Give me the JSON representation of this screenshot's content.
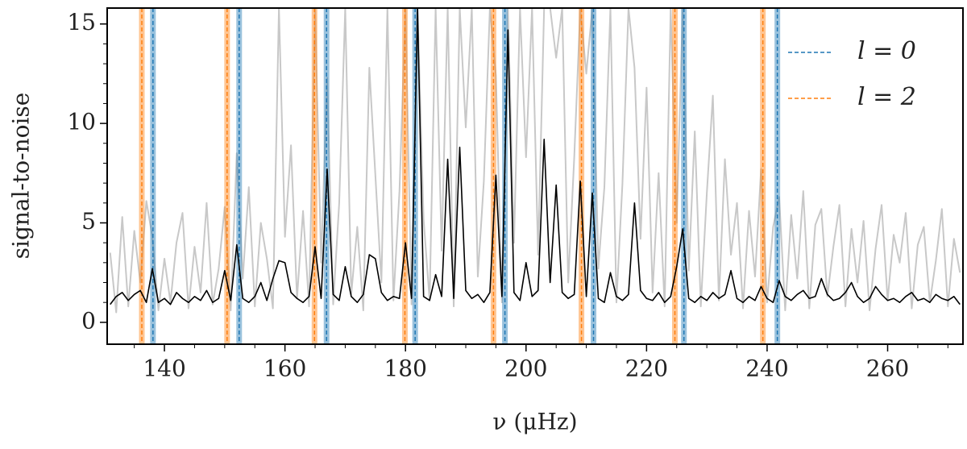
{
  "chart_data": {
    "type": "line",
    "xlabel": "ν (μHz)",
    "ylabel": "signal-to-noise",
    "xlim": [
      130.5,
      272.5
    ],
    "ylim": [
      -1.1,
      15.8
    ],
    "xticks": [
      140,
      160,
      180,
      200,
      220,
      240,
      260
    ],
    "xminorticks": [
      135,
      145,
      150,
      155,
      165,
      170,
      175,
      185,
      190,
      195,
      205,
      210,
      215,
      225,
      230,
      235,
      245,
      250,
      255,
      265,
      270
    ],
    "yticks": [
      0,
      5,
      10,
      15
    ],
    "yminorticks": [
      1,
      2,
      3,
      4,
      6,
      7,
      8,
      9,
      11,
      12,
      13,
      14
    ],
    "legend": "upper right",
    "x": [
      131,
      132,
      133,
      134,
      135,
      136,
      137,
      138,
      139,
      140,
      141,
      142,
      143,
      144,
      145,
      146,
      147,
      148,
      149,
      150,
      151,
      152,
      153,
      154,
      155,
      156,
      157,
      158,
      159,
      160,
      161,
      162,
      163,
      164,
      165,
      166,
      167,
      168,
      169,
      170,
      171,
      172,
      173,
      174,
      175,
      176,
      177,
      178,
      179,
      180,
      181,
      182,
      183,
      184,
      185,
      186,
      187,
      188,
      189,
      190,
      191,
      192,
      193,
      194,
      195,
      196,
      197,
      198,
      199,
      200,
      201,
      202,
      203,
      204,
      205,
      206,
      207,
      208,
      209,
      210,
      211,
      212,
      213,
      214,
      215,
      216,
      217,
      218,
      219,
      220,
      221,
      222,
      223,
      224,
      225,
      226,
      227,
      228,
      229,
      230,
      231,
      232,
      233,
      234,
      235,
      236,
      237,
      238,
      239,
      240,
      241,
      242,
      243,
      244,
      245,
      246,
      247,
      248,
      249,
      250,
      251,
      252,
      253,
      254,
      255,
      256,
      257,
      258,
      259,
      260,
      261,
      262,
      263,
      264,
      265,
      266,
      267,
      268,
      269,
      270,
      271,
      272
    ],
    "series": [
      {
        "color": "#c8c8c8",
        "values": [
          3.5,
          0.5,
          5.3,
          0.8,
          4.6,
          2.0,
          6.1,
          4.3,
          0.6,
          3.2,
          1.0,
          4.0,
          5.5,
          0.7,
          3.8,
          1.5,
          6.0,
          0.9,
          2.7,
          5.8,
          0.6,
          8.5,
          2.2,
          6.8,
          0.8,
          5.0,
          3.2,
          0.7,
          15.8,
          4.3,
          8.9,
          1.2,
          5.6,
          0.8,
          15.8,
          3.0,
          12.3,
          0.9,
          6.0,
          15.8,
          1.4,
          4.8,
          0.6,
          12.8,
          7.4,
          2.0,
          15.8,
          1.1,
          6.6,
          15.8,
          0.9,
          15.8,
          5.2,
          1.1,
          15.8,
          3.6,
          15.8,
          0.8,
          15.8,
          9.8,
          15.8,
          2.3,
          7.1,
          15.8,
          12.4,
          1.0,
          15.8,
          4.0,
          15.8,
          8.3,
          15.8,
          3.4,
          15.8,
          15.8,
          13.3,
          15.8,
          2.0,
          8.3,
          15.8,
          12.5,
          15.8,
          2.7,
          6.8,
          15.8,
          1.0,
          7.0,
          15.8,
          12.8,
          4.2,
          11.8,
          1.5,
          7.5,
          0.8,
          15.8,
          5.0,
          15.8,
          2.6,
          9.6,
          0.8,
          6.5,
          11.4,
          1.1,
          8.2,
          3.4,
          6.0,
          0.7,
          5.6,
          2.3,
          7.7,
          1.0,
          4.8,
          6.3,
          0.6,
          5.4,
          2.2,
          6.6,
          0.7,
          4.9,
          5.7,
          1.3,
          3.8,
          5.9,
          0.8,
          4.7,
          2.0,
          5.1,
          0.6,
          3.7,
          5.9,
          1.1,
          4.4,
          3.0,
          5.5,
          0.7,
          3.9,
          4.8,
          1.0,
          3.1,
          5.7,
          0.8,
          4.2,
          2.5
        ]
      },
      {
        "color": "#000000",
        "values": [
          0.9,
          1.3,
          1.5,
          1.1,
          1.4,
          1.6,
          1.0,
          2.7,
          1.0,
          1.2,
          0.9,
          1.5,
          1.2,
          1.0,
          1.3,
          1.1,
          1.6,
          1.0,
          1.2,
          2.6,
          1.1,
          3.9,
          1.2,
          1.0,
          1.3,
          2.0,
          1.1,
          2.2,
          3.1,
          3.0,
          1.5,
          1.2,
          1.0,
          1.3,
          3.8,
          1.2,
          7.7,
          1.4,
          1.1,
          2.8,
          1.3,
          1.0,
          1.4,
          3.4,
          3.2,
          1.5,
          1.1,
          1.3,
          1.2,
          4.0,
          1.2,
          15.8,
          1.3,
          1.1,
          2.4,
          1.3,
          8.2,
          1.2,
          8.8,
          1.6,
          1.2,
          1.4,
          1.0,
          1.5,
          7.4,
          1.3,
          14.7,
          1.5,
          1.1,
          3.0,
          1.3,
          1.6,
          9.2,
          2.0,
          6.9,
          1.5,
          1.2,
          1.4,
          7.1,
          1.3,
          6.5,
          1.2,
          1.0,
          2.5,
          1.3,
          1.1,
          1.4,
          6.0,
          1.6,
          1.2,
          1.1,
          1.5,
          1.0,
          1.3,
          2.8,
          4.7,
          1.2,
          1.0,
          1.3,
          1.1,
          1.5,
          1.2,
          1.4,
          2.6,
          1.2,
          1.0,
          1.3,
          1.1,
          1.8,
          1.2,
          1.0,
          2.1,
          1.3,
          1.1,
          1.4,
          1.6,
          1.2,
          1.3,
          2.2,
          1.4,
          1.1,
          1.2,
          1.5,
          2.0,
          1.3,
          1.0,
          1.2,
          1.8,
          1.4,
          1.1,
          1.2,
          1.0,
          1.3,
          1.5,
          1.1,
          1.2,
          1.0,
          1.4,
          1.2,
          1.1,
          1.3,
          0.9
        ]
      }
    ],
    "vlines": [
      {
        "name": "l = 0",
        "color": "#1f77b4",
        "x": [
          138.1,
          152.4,
          166.9,
          181.6,
          196.5,
          211.2,
          226.2,
          241.7
        ]
      },
      {
        "name": "l = 2",
        "color": "#ff7f0e",
        "x": [
          136.25,
          150.4,
          164.9,
          179.9,
          194.6,
          209.2,
          224.7,
          239.3
        ]
      }
    ]
  }
}
